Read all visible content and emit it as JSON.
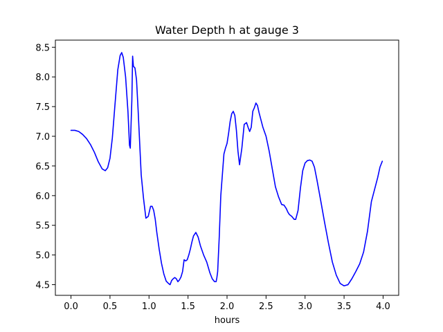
{
  "chart_data": {
    "type": "line",
    "title": "Water Depth h at gauge 3",
    "xlabel": "hours",
    "ylabel": "",
    "xlim": [
      -0.2,
      4.2
    ],
    "ylim": [
      4.32,
      8.62
    ],
    "xticks": [
      0.0,
      0.5,
      1.0,
      1.5,
      2.0,
      2.5,
      3.0,
      3.5,
      4.0
    ],
    "xtick_labels": [
      "0.0",
      "0.5",
      "1.0",
      "1.5",
      "2.0",
      "2.5",
      "3.0",
      "3.5",
      "4.0"
    ],
    "yticks": [
      4.5,
      5.0,
      5.5,
      6.0,
      6.5,
      7.0,
      7.5,
      8.0,
      8.5
    ],
    "ytick_labels": [
      "4.5",
      "5.0",
      "5.5",
      "6.0",
      "6.5",
      "7.0",
      "7.5",
      "8.0",
      "8.5"
    ],
    "grid": false,
    "series": [
      {
        "color": "#0000ff",
        "x": [
          0.0,
          0.05,
          0.1,
          0.15,
          0.2,
          0.25,
          0.3,
          0.35,
          0.4,
          0.44,
          0.47,
          0.5,
          0.53,
          0.56,
          0.6,
          0.63,
          0.65,
          0.67,
          0.7,
          0.73,
          0.75,
          0.76,
          0.78,
          0.79,
          0.8,
          0.82,
          0.84,
          0.86,
          0.9,
          0.93,
          0.96,
          0.99,
          1.02,
          1.04,
          1.06,
          1.08,
          1.1,
          1.13,
          1.16,
          1.19,
          1.22,
          1.25,
          1.27,
          1.29,
          1.31,
          1.33,
          1.35,
          1.37,
          1.39,
          1.41,
          1.43,
          1.45,
          1.47,
          1.49,
          1.51,
          1.53,
          1.55,
          1.57,
          1.6,
          1.63,
          1.66,
          1.7,
          1.74,
          1.78,
          1.81,
          1.84,
          1.86,
          1.87,
          1.88,
          1.9,
          1.92,
          1.94,
          1.96,
          1.98,
          2.0,
          2.02,
          2.04,
          2.06,
          2.08,
          2.1,
          2.12,
          2.14,
          2.16,
          2.19,
          2.22,
          2.25,
          2.27,
          2.29,
          2.31,
          2.33,
          2.35,
          2.37,
          2.39,
          2.41,
          2.43,
          2.46,
          2.5,
          2.54,
          2.58,
          2.62,
          2.66,
          2.7,
          2.73,
          2.76,
          2.78,
          2.8,
          2.83,
          2.86,
          2.88,
          2.91,
          2.94,
          2.97,
          3.0,
          3.03,
          3.06,
          3.09,
          3.12,
          3.15,
          3.2,
          3.25,
          3.3,
          3.35,
          3.4,
          3.45,
          3.5,
          3.55,
          3.6,
          3.65,
          3.7,
          3.75,
          3.8,
          3.85,
          3.9,
          3.93,
          3.96,
          3.99
        ],
        "y": [
          7.1,
          7.1,
          7.08,
          7.03,
          6.96,
          6.86,
          6.73,
          6.57,
          6.45,
          6.42,
          6.47,
          6.63,
          6.97,
          7.47,
          8.12,
          8.36,
          8.41,
          8.33,
          8.0,
          7.42,
          6.85,
          6.8,
          7.6,
          8.35,
          8.18,
          8.15,
          7.95,
          7.45,
          6.35,
          5.95,
          5.62,
          5.65,
          5.82,
          5.82,
          5.75,
          5.6,
          5.38,
          5.1,
          4.86,
          4.68,
          4.56,
          4.52,
          4.5,
          4.57,
          4.6,
          4.62,
          4.6,
          4.55,
          4.58,
          4.63,
          4.72,
          4.92,
          4.9,
          4.92,
          5.0,
          5.1,
          5.22,
          5.32,
          5.38,
          5.3,
          5.15,
          5.0,
          4.88,
          4.7,
          4.6,
          4.55,
          4.55,
          4.62,
          4.72,
          5.3,
          6.0,
          6.35,
          6.7,
          6.8,
          6.88,
          7.05,
          7.25,
          7.38,
          7.42,
          7.35,
          7.1,
          6.75,
          6.52,
          6.8,
          7.2,
          7.23,
          7.15,
          7.08,
          7.15,
          7.42,
          7.48,
          7.56,
          7.52,
          7.4,
          7.3,
          7.15,
          7.0,
          6.75,
          6.45,
          6.15,
          5.98,
          5.85,
          5.84,
          5.78,
          5.72,
          5.68,
          5.65,
          5.6,
          5.6,
          5.75,
          6.12,
          6.42,
          6.55,
          6.59,
          6.6,
          6.58,
          6.48,
          6.28,
          5.92,
          5.55,
          5.2,
          4.88,
          4.66,
          4.52,
          4.48,
          4.5,
          4.6,
          4.72,
          4.85,
          5.05,
          5.4,
          5.9,
          6.15,
          6.3,
          6.48,
          6.58
        ]
      }
    ]
  }
}
